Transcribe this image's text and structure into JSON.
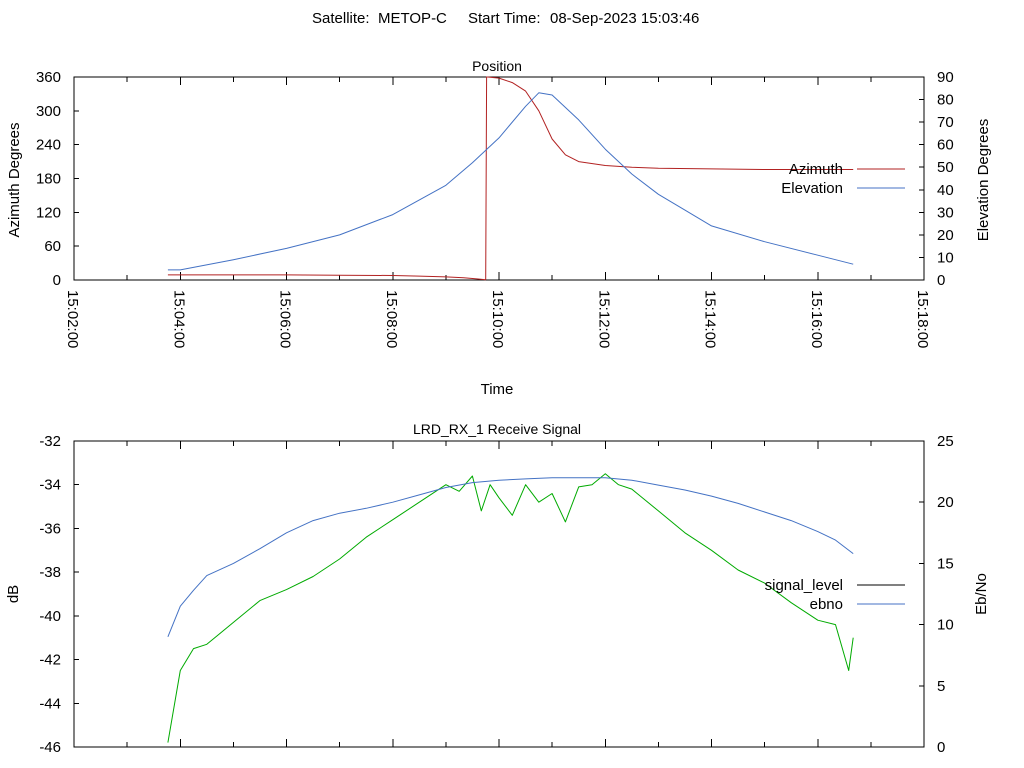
{
  "header": {
    "satellite_label": "Satellite:",
    "satellite": "METOP-C",
    "start_label": "Start Time:",
    "start_time": "08-Sep-2023 15:03:46"
  },
  "colors": {
    "azimuth": "#b22222",
    "elevation": "#4472c4",
    "signal_level": "#000000",
    "ebno": "#4472c4",
    "green_trace": "#00aa00"
  },
  "chart_data": [
    {
      "type": "line",
      "title": "Position",
      "xlabel": "Time",
      "ylabel": "Azimuth Degrees",
      "y2label": "Elevation Degrees",
      "xlim": [
        "15:02:00",
        "15:18:00"
      ],
      "ylim": [
        0,
        360
      ],
      "y2lim": [
        0,
        90
      ],
      "xticks": [
        "15:02:00",
        "15:04:00",
        "15:06:00",
        "15:08:00",
        "15:10:00",
        "15:12:00",
        "15:14:00",
        "15:16:00",
        "15:18:00"
      ],
      "yticks": [
        "0",
        "60",
        "120",
        "180",
        "240",
        "300",
        "360"
      ],
      "y2ticks": [
        "0",
        "10",
        "20",
        "30",
        "40",
        "50",
        "60",
        "70",
        "80",
        "90"
      ],
      "legend_position": "right",
      "series": [
        {
          "name": "Azimuth",
          "axis": "y",
          "x": [
            "15:03:46",
            "15:05:00",
            "15:06:00",
            "15:07:00",
            "15:08:00",
            "15:08:30",
            "15:09:00",
            "15:09:20",
            "15:09:35",
            "15:09:45",
            "15:09:46",
            "15:09:47",
            "15:10:00",
            "15:10:15",
            "15:10:30",
            "15:10:45",
            "15:11:00",
            "15:11:15",
            "15:11:30",
            "15:12:00",
            "15:12:30",
            "15:13:00",
            "15:14:00",
            "15:15:00",
            "15:16:00",
            "15:16:40"
          ],
          "y": [
            9,
            9,
            9,
            8.5,
            8,
            7,
            5.5,
            4,
            2,
            0.5,
            360,
            360,
            358,
            350,
            335,
            300,
            250,
            222,
            210,
            203,
            200,
            198,
            197,
            196,
            196,
            196
          ]
        },
        {
          "name": "Elevation",
          "axis": "y2",
          "x": [
            "15:03:46",
            "15:04:00",
            "15:05:00",
            "15:06:00",
            "15:07:00",
            "15:08:00",
            "15:09:00",
            "15:09:30",
            "15:10:00",
            "15:10:30",
            "15:10:45",
            "15:11:00",
            "15:11:30",
            "15:12:00",
            "15:12:30",
            "15:13:00",
            "15:13:30",
            "15:14:00",
            "15:15:00",
            "15:16:00",
            "15:16:40"
          ],
          "y": [
            4.5,
            4.5,
            9,
            14,
            20,
            29,
            42,
            52,
            63,
            77,
            83,
            82,
            71,
            58,
            47,
            38,
            31,
            24,
            17,
            11,
            7
          ]
        }
      ]
    },
    {
      "type": "line",
      "title": "LRD_RX_1 Receive Signal",
      "ylabel": "dB",
      "y2label": "Eb/No",
      "xlim": [
        "15:02:00",
        "15:18:00"
      ],
      "ylim": [
        -46,
        -32
      ],
      "y2lim": [
        0,
        25
      ],
      "yticks": [
        "-32",
        "-34",
        "-36",
        "-38",
        "-40",
        "-42",
        "-44",
        "-46"
      ],
      "y2ticks": [
        "0",
        "5",
        "10",
        "15",
        "20",
        "25"
      ],
      "legend_position": "right",
      "series": [
        {
          "name": "signal_level",
          "axis": "y",
          "x": [
            "15:03:46",
            "15:04:00",
            "15:04:15",
            "15:04:30",
            "15:05:00",
            "15:05:30",
            "15:06:00",
            "15:06:30",
            "15:07:00",
            "15:07:30",
            "15:08:00",
            "15:08:30",
            "15:09:00",
            "15:09:15",
            "15:09:30",
            "15:09:40",
            "15:09:50",
            "15:10:00",
            "15:10:15",
            "15:10:30",
            "15:10:45",
            "15:11:00",
            "15:11:15",
            "15:11:30",
            "15:11:45",
            "15:12:00",
            "15:12:15",
            "15:12:30",
            "15:13:00",
            "15:13:30",
            "15:14:00",
            "15:14:30",
            "15:15:00",
            "15:15:30",
            "15:16:00",
            "15:16:20",
            "15:16:35",
            "15:16:40"
          ],
          "y": [
            -45.8,
            -42.5,
            -41.5,
            -41.3,
            -40.3,
            -39.3,
            -38.8,
            -38.2,
            -37.4,
            -36.4,
            -35.6,
            -34.8,
            -34.0,
            -34.3,
            -33.6,
            -35.2,
            -34.0,
            -34.6,
            -35.4,
            -34.0,
            -34.8,
            -34.4,
            -35.7,
            -34.1,
            -34.0,
            -33.5,
            -34.0,
            -34.2,
            -35.2,
            -36.2,
            -37.0,
            -37.9,
            -38.5,
            -39.4,
            -40.2,
            -40.4,
            -42.5,
            -41.0
          ]
        },
        {
          "name": "ebno",
          "axis": "y2",
          "x": [
            "15:03:46",
            "15:04:00",
            "15:04:15",
            "15:04:30",
            "15:05:00",
            "15:05:30",
            "15:06:00",
            "15:06:30",
            "15:07:00",
            "15:07:30",
            "15:08:00",
            "15:08:30",
            "15:09:00",
            "15:09:30",
            "15:10:00",
            "15:10:30",
            "15:11:00",
            "15:11:30",
            "15:12:00",
            "15:12:30",
            "15:13:00",
            "15:13:30",
            "15:14:00",
            "15:14:30",
            "15:15:00",
            "15:15:30",
            "15:16:00",
            "15:16:20",
            "15:16:40"
          ],
          "y": [
            9.0,
            11.5,
            12.8,
            14.0,
            15.0,
            16.2,
            17.5,
            18.5,
            19.1,
            19.5,
            20.0,
            20.6,
            21.2,
            21.6,
            21.8,
            21.9,
            22.0,
            22.0,
            22.0,
            21.8,
            21.4,
            21.0,
            20.5,
            19.9,
            19.2,
            18.5,
            17.6,
            16.9,
            15.8
          ]
        }
      ]
    }
  ]
}
